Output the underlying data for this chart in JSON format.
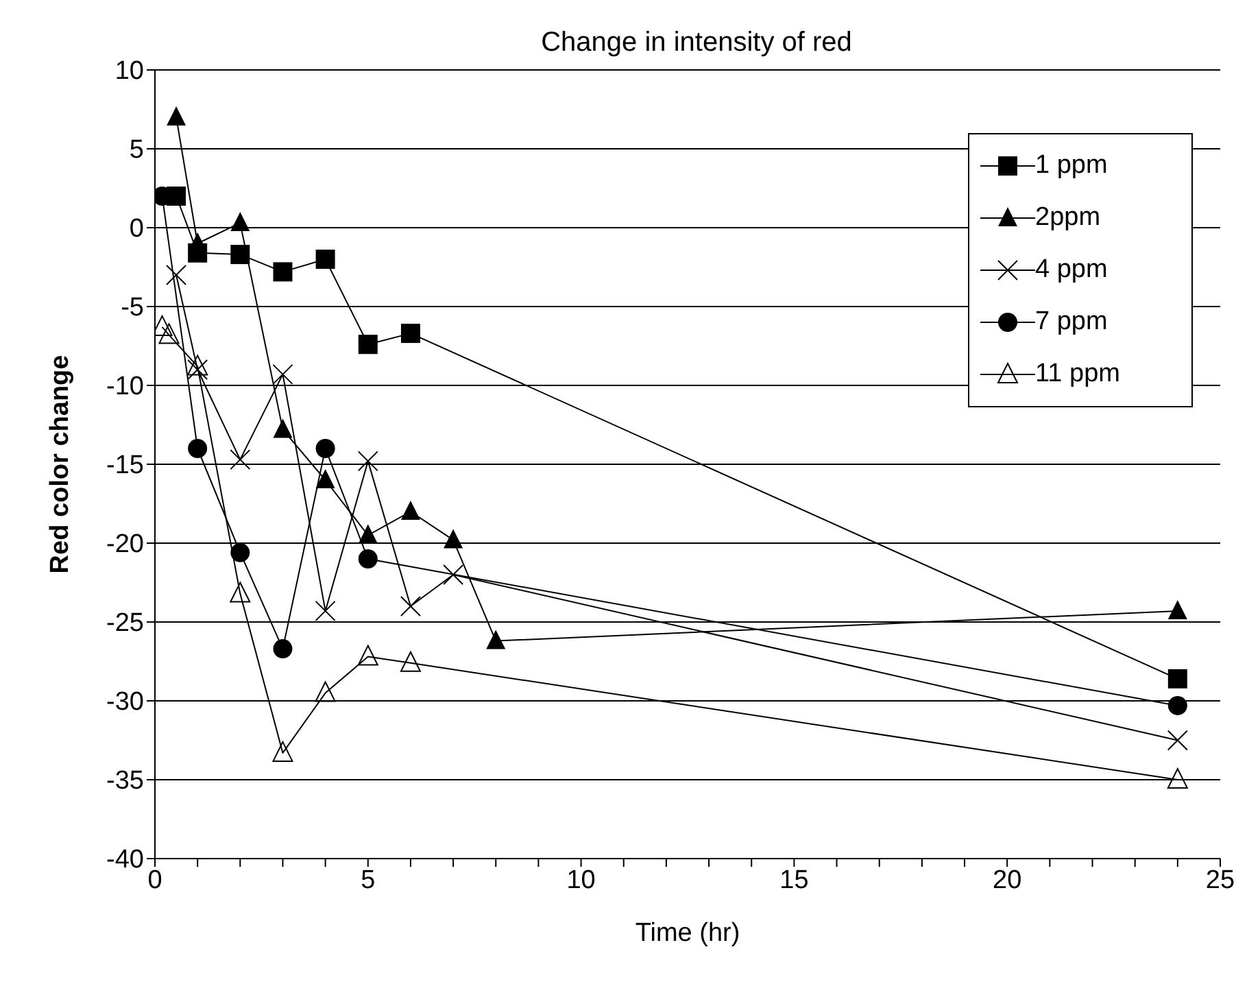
{
  "chart_data": {
    "type": "line",
    "title": "Change in intensity of red",
    "xlabel": "Time (hr)",
    "ylabel": "Red color change",
    "xlim": [
      0,
      25
    ],
    "xticks": [
      0,
      {
        "value": 1,
        "label": null
      },
      {
        "value": 2,
        "label": null
      },
      {
        "value": 3,
        "label": null
      },
      {
        "value": 4,
        "label": null
      },
      5,
      {
        "value": 6,
        "label": null
      },
      {
        "value": 7,
        "label": null
      },
      {
        "value": 8,
        "label": null
      },
      {
        "value": 9,
        "label": null
      },
      10,
      {
        "value": 11,
        "label": null
      },
      {
        "value": 12,
        "label": null
      },
      {
        "value": 13,
        "label": null
      },
      {
        "value": 14,
        "label": null
      },
      15,
      {
        "value": 16,
        "label": null
      },
      {
        "value": 17,
        "label": null
      },
      {
        "value": 18,
        "label": null
      },
      {
        "value": 19,
        "label": null
      },
      20,
      {
        "value": 21,
        "label": null
      },
      {
        "value": 22,
        "label": null
      },
      {
        "value": 23,
        "label": null
      },
      {
        "value": 24,
        "label": null
      },
      25
    ],
    "ylim": [
      -40,
      10
    ],
    "yticks": [
      -40,
      -35,
      -30,
      -25,
      -20,
      -15,
      -10,
      -5,
      0,
      5,
      10
    ],
    "grid": "y",
    "legend": "top right",
    "line_style": "solid",
    "series": [
      {
        "name": "1 ppm",
        "color": "#000000",
        "marker": "square",
        "x": [
          0.5,
          1,
          2,
          3,
          4,
          5,
          6,
          24
        ],
        "values": [
          2,
          -1.6,
          -1.7,
          -2.8,
          -2,
          -7.4,
          -6.7,
          -28.6
        ]
      },
      {
        "name": "2ppm",
        "color": "#000000",
        "marker": "triangle",
        "x": [
          0.5,
          1,
          2,
          3,
          4,
          5,
          6,
          7,
          8,
          24
        ],
        "values": [
          7,
          -1,
          0.3,
          -12.8,
          -16,
          -19.5,
          -18,
          -19.8,
          -26.2,
          -24.3
        ]
      },
      {
        "name": "4 ppm",
        "color": "#000000",
        "marker": "cross",
        "x": [
          0.5,
          1,
          2,
          3,
          4,
          5,
          6,
          7,
          24
        ],
        "values": [
          -3,
          -9,
          -14.7,
          -9.3,
          -24.3,
          -14.8,
          -24,
          -22,
          -32.5
        ]
      },
      {
        "name": "7 ppm",
        "color": "#000000",
        "marker": "circle",
        "x": [
          0.17,
          1,
          2,
          3,
          4,
          5,
          24
        ],
        "values": [
          2,
          -14,
          -20.6,
          -26.7,
          -14,
          -21,
          -30.3
        ]
      },
      {
        "name": "11 ppm",
        "color": "#000000",
        "marker": "triangle-open",
        "x": [
          0.17,
          0.33,
          1,
          2,
          3,
          4,
          5,
          6,
          24
        ],
        "values": [
          -6.3,
          -6.8,
          -8.8,
          -23.2,
          -33.3,
          -29.5,
          -27.2,
          -27.6,
          -35
        ]
      }
    ]
  }
}
